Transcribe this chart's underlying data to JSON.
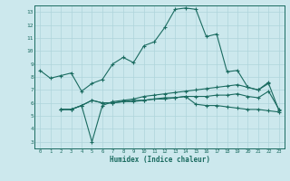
{
  "xlabel": "Humidex (Indice chaleur)",
  "ylabel": "",
  "bg_color": "#cce8ed",
  "line_color": "#1a6b60",
  "xlim": [
    -0.5,
    23.5
  ],
  "ylim": [
    2.5,
    13.5
  ],
  "xticks": [
    0,
    1,
    2,
    3,
    4,
    5,
    6,
    7,
    8,
    9,
    10,
    11,
    12,
    13,
    14,
    15,
    16,
    17,
    18,
    19,
    20,
    21,
    22,
    23
  ],
  "yticks": [
    3,
    4,
    5,
    6,
    7,
    8,
    9,
    10,
    11,
    12,
    13
  ],
  "grid_color": "#aed4db",
  "series": [
    {
      "x": [
        0,
        1,
        2,
        3,
        4,
        5,
        6,
        7,
        8,
        9,
        10,
        11,
        12,
        13,
        14,
        15,
        16,
        17,
        18,
        19,
        20,
        21,
        22
      ],
      "y": [
        8.5,
        7.9,
        8.1,
        8.3,
        6.9,
        7.5,
        7.8,
        9.0,
        9.5,
        9.1,
        10.4,
        10.7,
        11.8,
        13.2,
        13.3,
        13.2,
        11.1,
        11.3,
        8.4,
        8.5,
        7.2,
        7.0,
        7.6
      ]
    },
    {
      "x": [
        2,
        3,
        4,
        5,
        6,
        7,
        8,
        9,
        10,
        11,
        12,
        13,
        14,
        15,
        16,
        17,
        18,
        19,
        20,
        21,
        22,
        23
      ],
      "y": [
        5.5,
        5.5,
        5.8,
        3.0,
        5.8,
        6.1,
        6.2,
        6.3,
        6.5,
        6.6,
        6.7,
        6.8,
        6.9,
        7.0,
        7.1,
        7.2,
        7.3,
        7.4,
        7.2,
        7.0,
        7.5,
        5.4
      ]
    },
    {
      "x": [
        2,
        3,
        4,
        5,
        6,
        7,
        8,
        9,
        10,
        11,
        12,
        13,
        14,
        15,
        16,
        17,
        18,
        19,
        20,
        21,
        22,
        23
      ],
      "y": [
        5.5,
        5.5,
        5.8,
        6.2,
        6.0,
        6.0,
        6.1,
        6.2,
        6.2,
        6.3,
        6.3,
        6.4,
        6.5,
        6.5,
        6.5,
        6.6,
        6.6,
        6.7,
        6.5,
        6.4,
        6.9,
        5.5
      ]
    },
    {
      "x": [
        2,
        3,
        4,
        5,
        6,
        7,
        8,
        9,
        10,
        11,
        12,
        13,
        14,
        15,
        16,
        17,
        18,
        19,
        20,
        21,
        22,
        23
      ],
      "y": [
        5.5,
        5.5,
        5.8,
        6.2,
        6.0,
        6.0,
        6.1,
        6.1,
        6.2,
        6.3,
        6.4,
        6.4,
        6.5,
        5.9,
        5.8,
        5.8,
        5.7,
        5.6,
        5.5,
        5.5,
        5.4,
        5.3
      ]
    }
  ]
}
